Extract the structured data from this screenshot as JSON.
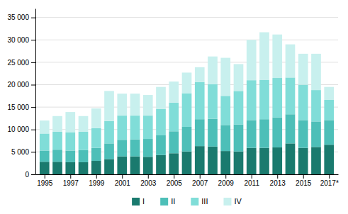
{
  "chart_data": {
    "type": "bar",
    "stacked": true,
    "grid": true,
    "legend": "bottom",
    "x": [
      1995,
      1996,
      1997,
      1998,
      1999,
      2000,
      2001,
      2002,
      2003,
      2004,
      2005,
      2006,
      2007,
      2008,
      2009,
      2010,
      2011,
      2012,
      2013,
      2014,
      2015,
      2016,
      2017
    ],
    "xlim": [
      1994.3,
      2017.7
    ],
    "xticks": [
      1995,
      1997,
      1999,
      2001,
      2003,
      2005,
      2007,
      2009,
      2011,
      2013,
      2015,
      {
        "value": 2017,
        "label": "2017*"
      }
    ],
    "ylim": [
      0,
      37000
    ],
    "yticks": [
      0,
      {
        "value": 5000,
        "label": "5 000"
      },
      {
        "value": 10000,
        "label": "10 000"
      },
      {
        "value": 15000,
        "label": "15 000"
      },
      {
        "value": 20000,
        "label": "20 000"
      },
      {
        "value": 25000,
        "label": "25 000"
      },
      {
        "value": 30000,
        "label": "30 000"
      },
      {
        "value": 35000,
        "label": "35 000"
      }
    ],
    "series": [
      {
        "name": "I",
        "color": "#1a7a6e",
        "values": [
          2800,
          2800,
          2700,
          2700,
          3000,
          3400,
          4000,
          4000,
          3900,
          4300,
          4700,
          5100,
          6300,
          6200,
          5200,
          5100,
          5900,
          5900,
          6000,
          6900,
          5900,
          6100,
          6600
        ]
      },
      {
        "name": "II",
        "color": "#4dbfb8",
        "values": [
          2500,
          2700,
          2600,
          2700,
          2900,
          3500,
          3700,
          3800,
          4000,
          4400,
          4900,
          5500,
          6000,
          6200,
          5800,
          6000,
          6200,
          6400,
          6700,
          6500,
          6200,
          5700,
          5500
        ]
      },
      {
        "name": "III",
        "color": "#80ddd8",
        "values": [
          3800,
          4000,
          4100,
          4100,
          4400,
          5000,
          5400,
          5300,
          5200,
          5900,
          6400,
          7500,
          8300,
          7700,
          6500,
          7500,
          8900,
          8800,
          8800,
          8200,
          7900,
          7000,
          4500
        ]
      },
      {
        "name": "IV",
        "color": "#c8f0ee",
        "values": [
          2900,
          3500,
          4500,
          3500,
          4400,
          6700,
          4900,
          4900,
          4600,
          4900,
          4700,
          4600,
          3300,
          6200,
          8500,
          6000,
          9000,
          10600,
          9700,
          7400,
          6900,
          8100,
          2900
        ]
      }
    ]
  }
}
